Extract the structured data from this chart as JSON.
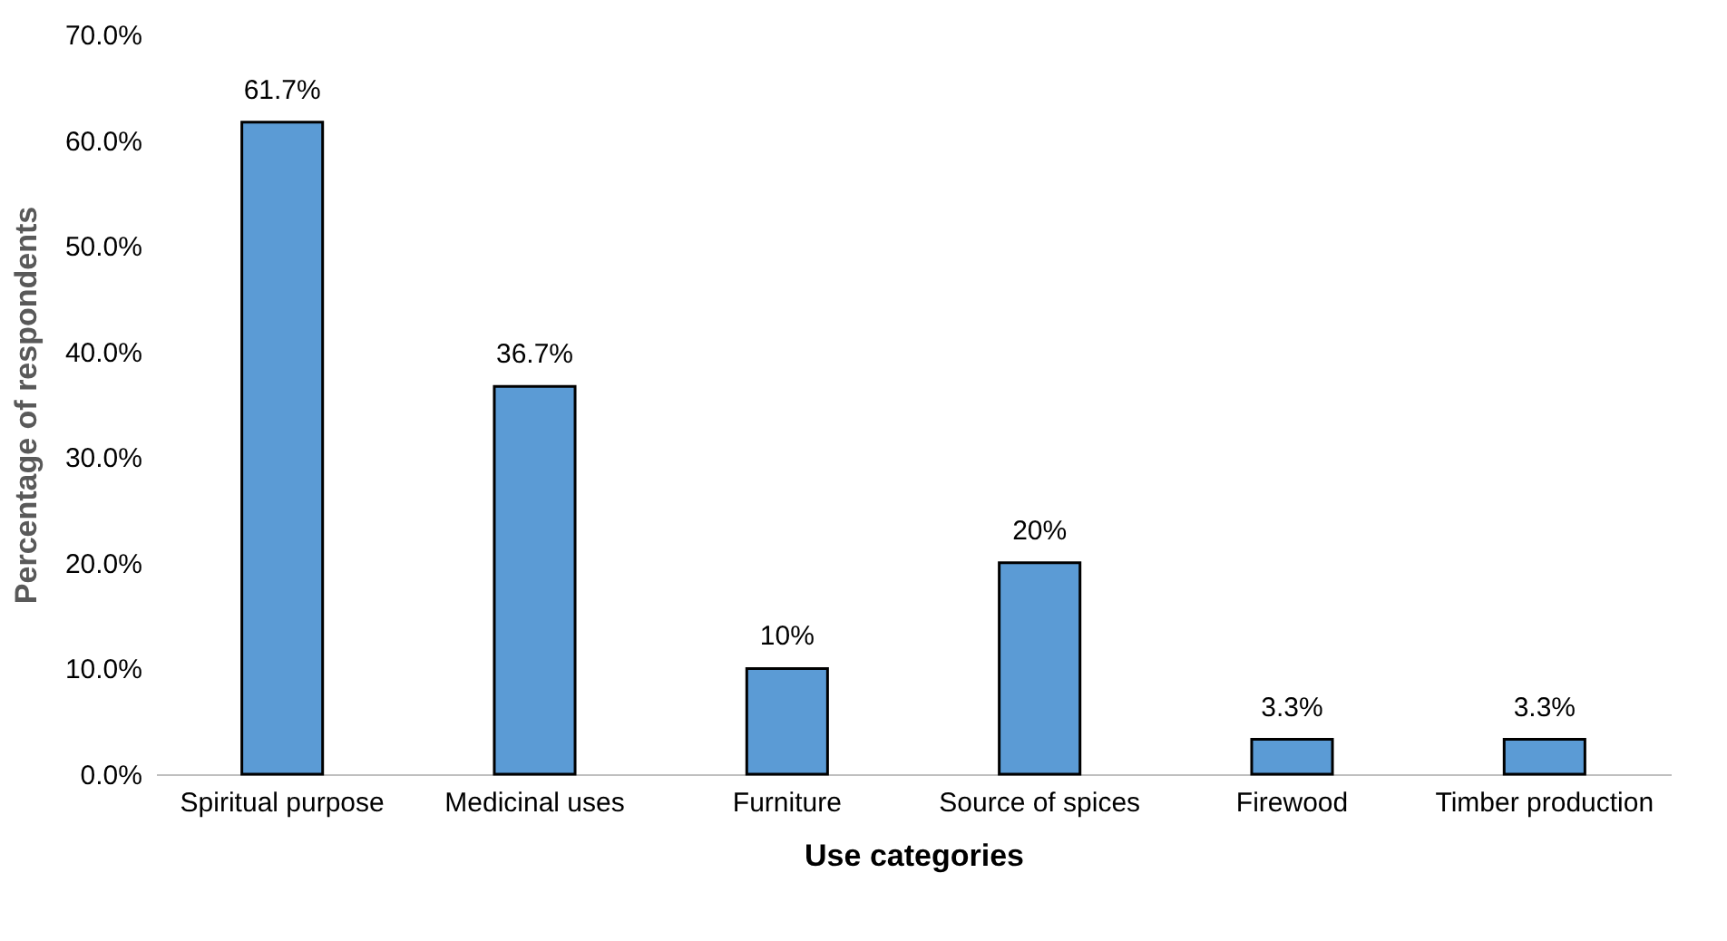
{
  "chart_data": {
    "type": "bar",
    "xlabel": "Use categories",
    "ylabel": "Percentage of respondents",
    "categories": [
      "Spiritual purpose",
      "Medicinal uses",
      "Furniture",
      "Source of spices",
      "Firewood",
      "Timber production"
    ],
    "values": [
      61.7,
      36.7,
      10,
      20,
      3.3,
      3.3
    ],
    "value_labels": [
      "61.7%",
      "36.7%",
      "10%",
      "20%",
      "3.3%",
      "3.3%"
    ],
    "color": "#5b9bd5",
    "ylim": [
      0,
      70
    ],
    "yticks": [
      {
        "value": 0,
        "label": "0.0%"
      },
      {
        "value": 10,
        "label": "10.0%"
      },
      {
        "value": 20,
        "label": "20.0%"
      },
      {
        "value": 30,
        "label": "30.0%"
      },
      {
        "value": 40,
        "label": "40.0%"
      },
      {
        "value": 50,
        "label": "50.0%"
      },
      {
        "value": 60,
        "label": "60.0%"
      },
      {
        "value": 70,
        "label": "70.0%"
      }
    ],
    "grid": false
  }
}
